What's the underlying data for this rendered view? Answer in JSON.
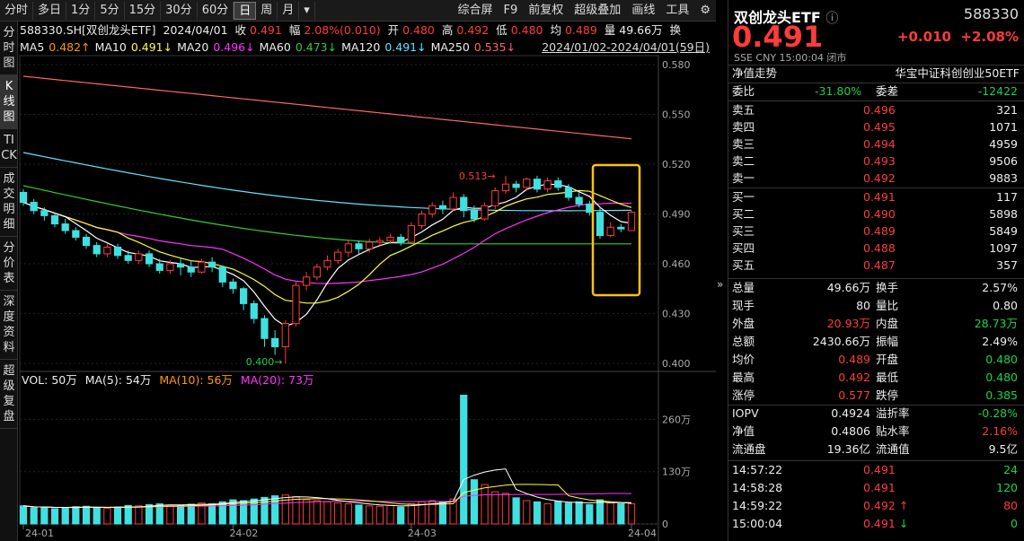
{
  "toolbar": {
    "periods": [
      "分时",
      "多日",
      "1分",
      "5分",
      "15分",
      "30分",
      "60分",
      "日",
      "周",
      "月",
      "▾"
    ],
    "active_period": "日",
    "right_items": [
      "综合屏",
      "F9",
      "前复权",
      "超级叠加",
      "画线",
      "工具",
      "⚙"
    ]
  },
  "left_tabs": [
    "分时图",
    "K线图",
    "TICK",
    "成交明细",
    "分价表",
    "深度资料",
    "超级复盘"
  ],
  "infobar": {
    "code_name": "588330.SH[双创龙头ETF]",
    "date": "2024/04/01",
    "close_label": "收",
    "close": "0.491",
    "amp_label": "幅",
    "amp": "2.08%(0.010)",
    "open_label": "开",
    "open": "0.480",
    "high_label": "高",
    "high": "0.492",
    "low_label": "低",
    "low": "0.480",
    "avg_label": "均",
    "avg": "0.489",
    "vol_label": "量",
    "vol": "49.66万",
    "swap": "换",
    "range": "2024/01/02-2024/04/01(59日)"
  },
  "ma_legend": [
    {
      "label": "MA5",
      "value": "0.482↑",
      "color": "#ff9900"
    },
    {
      "label": "MA10",
      "value": "0.491↓",
      "color": "#ffff33"
    },
    {
      "label": "MA20",
      "value": "0.496↓",
      "color": "#ff33ff"
    },
    {
      "label": "MA60",
      "value": "0.473↓",
      "color": "#33cc33"
    },
    {
      "label": "MA120",
      "value": "0.491↓",
      "color": "#66e0ff"
    },
    {
      "label": "MA250",
      "value": "0.535↓",
      "color": "#ff6666"
    }
  ],
  "volume_legend": {
    "vol": "VOL: 50万",
    "ma5": "MA(5): 54万",
    "ma10": "MA(10): 56万",
    "ma20": "MA(20): 73万"
  },
  "chart_data": {
    "type": "candlestick",
    "price_axis": {
      "ticks": [
        "0.580",
        "0.550",
        "0.520",
        "0.490",
        "0.460",
        "0.430",
        "0.400"
      ],
      "range": [
        0.4,
        0.58
      ]
    },
    "volume_axis": {
      "ticks": [
        "260万",
        "130万",
        "0"
      ],
      "range": [
        0,
        330
      ]
    },
    "x_ticks": [
      "24-01",
      "24-02",
      "24-03",
      "24-04"
    ],
    "annotations": {
      "high": "0.513",
      "low": "0.400"
    },
    "candles": [
      [
        0.503,
        0.497,
        0.505,
        0.495,
        45
      ],
      [
        0.497,
        0.492,
        0.499,
        0.49,
        40
      ],
      [
        0.492,
        0.489,
        0.494,
        0.486,
        42
      ],
      [
        0.489,
        0.484,
        0.491,
        0.482,
        38
      ],
      [
        0.484,
        0.48,
        0.487,
        0.478,
        41
      ],
      [
        0.48,
        0.476,
        0.482,
        0.474,
        43
      ],
      [
        0.476,
        0.471,
        0.478,
        0.469,
        44
      ],
      [
        0.471,
        0.466,
        0.473,
        0.464,
        40
      ],
      [
        0.466,
        0.47,
        0.472,
        0.464,
        39
      ],
      [
        0.47,
        0.465,
        0.472,
        0.463,
        42
      ],
      [
        0.465,
        0.462,
        0.468,
        0.46,
        46
      ],
      [
        0.462,
        0.466,
        0.468,
        0.46,
        45
      ],
      [
        0.466,
        0.46,
        0.468,
        0.458,
        48
      ],
      [
        0.46,
        0.456,
        0.463,
        0.454,
        50
      ],
      [
        0.456,
        0.46,
        0.462,
        0.454,
        47
      ],
      [
        0.46,
        0.458,
        0.463,
        0.453,
        46
      ],
      [
        0.458,
        0.455,
        0.462,
        0.452,
        49
      ],
      [
        0.455,
        0.461,
        0.463,
        0.454,
        52
      ],
      [
        0.461,
        0.458,
        0.464,
        0.455,
        50
      ],
      [
        0.458,
        0.449,
        0.459,
        0.446,
        55
      ],
      [
        0.449,
        0.445,
        0.451,
        0.442,
        60
      ],
      [
        0.445,
        0.436,
        0.446,
        0.432,
        58
      ],
      [
        0.436,
        0.427,
        0.438,
        0.424,
        62
      ],
      [
        0.427,
        0.415,
        0.429,
        0.41,
        66
      ],
      [
        0.415,
        0.41,
        0.42,
        0.405,
        70
      ],
      [
        0.41,
        0.424,
        0.426,
        0.4,
        72
      ],
      [
        0.424,
        0.447,
        0.449,
        0.422,
        68
      ],
      [
        0.447,
        0.452,
        0.455,
        0.444,
        60
      ],
      [
        0.452,
        0.458,
        0.46,
        0.45,
        58
      ],
      [
        0.458,
        0.462,
        0.465,
        0.456,
        55
      ],
      [
        0.462,
        0.467,
        0.469,
        0.46,
        52
      ],
      [
        0.467,
        0.472,
        0.474,
        0.464,
        50
      ],
      [
        0.472,
        0.469,
        0.474,
        0.466,
        47
      ],
      [
        0.469,
        0.473,
        0.475,
        0.467,
        45
      ],
      [
        0.473,
        0.474,
        0.476,
        0.471,
        44
      ],
      [
        0.474,
        0.476,
        0.478,
        0.472,
        46
      ],
      [
        0.476,
        0.473,
        0.478,
        0.471,
        42
      ],
      [
        0.473,
        0.483,
        0.485,
        0.472,
        50
      ],
      [
        0.483,
        0.49,
        0.492,
        0.481,
        55
      ],
      [
        0.49,
        0.495,
        0.497,
        0.488,
        58
      ],
      [
        0.495,
        0.493,
        0.498,
        0.49,
        56
      ],
      [
        0.493,
        0.5,
        0.503,
        0.492,
        62
      ],
      [
        0.5,
        0.492,
        0.502,
        0.488,
        320
      ],
      [
        0.492,
        0.487,
        0.495,
        0.485,
        110
      ],
      [
        0.487,
        0.495,
        0.497,
        0.486,
        98
      ],
      [
        0.495,
        0.504,
        0.506,
        0.493,
        80
      ],
      [
        0.504,
        0.508,
        0.513,
        0.502,
        76
      ],
      [
        0.508,
        0.506,
        0.51,
        0.503,
        65
      ],
      [
        0.506,
        0.511,
        0.512,
        0.504,
        58
      ],
      [
        0.511,
        0.505,
        0.513,
        0.503,
        55
      ],
      [
        0.505,
        0.51,
        0.512,
        0.503,
        50
      ],
      [
        0.51,
        0.506,
        0.512,
        0.504,
        56
      ],
      [
        0.506,
        0.5,
        0.508,
        0.498,
        52
      ],
      [
        0.5,
        0.496,
        0.503,
        0.494,
        55
      ],
      [
        0.496,
        0.491,
        0.498,
        0.489,
        48
      ],
      [
        0.491,
        0.477,
        0.494,
        0.475,
        60
      ],
      [
        0.477,
        0.482,
        0.485,
        0.476,
        52
      ],
      [
        0.482,
        0.481,
        0.484,
        0.479,
        50
      ],
      [
        0.48,
        0.491,
        0.492,
        0.48,
        50
      ]
    ]
  },
  "quote": {
    "name": "双创龙头ETF",
    "code": "588330",
    "price": "0.491",
    "change": "+0.010",
    "change_pct": "+2.08%",
    "exchange": "SSE  CNY  15:00:04  闭市",
    "trend_label": "净值走势",
    "index_name": "华宝中证科创创业50ETF",
    "weibi_label": "委比",
    "weibi": "-31.80%",
    "weicha_label": "委差",
    "weicha": "-12422",
    "asks": [
      {
        "label": "卖五",
        "price": "0.496",
        "vol": "321"
      },
      {
        "label": "卖四",
        "price": "0.495",
        "vol": "1071"
      },
      {
        "label": "卖三",
        "price": "0.494",
        "vol": "4959"
      },
      {
        "label": "卖二",
        "price": "0.493",
        "vol": "9506"
      },
      {
        "label": "卖一",
        "price": "0.492",
        "vol": "9883"
      }
    ],
    "bids": [
      {
        "label": "买一",
        "price": "0.491",
        "vol": "117"
      },
      {
        "label": "买二",
        "price": "0.490",
        "vol": "5898"
      },
      {
        "label": "买三",
        "price": "0.489",
        "vol": "5849"
      },
      {
        "label": "买四",
        "price": "0.488",
        "vol": "1097"
      },
      {
        "label": "买五",
        "price": "0.487",
        "vol": "357"
      }
    ],
    "stats": [
      [
        {
          "l": "总量",
          "v": "49.66万",
          "c": "white"
        },
        {
          "l": "换手",
          "v": "2.57%",
          "c": "white"
        }
      ],
      [
        {
          "l": "现手",
          "v": "80",
          "c": "white"
        },
        {
          "l": "量比",
          "v": "0.80",
          "c": "white"
        }
      ],
      [
        {
          "l": "外盘",
          "v": "20.93万",
          "c": "red"
        },
        {
          "l": "内盘",
          "v": "28.73万",
          "c": "green"
        }
      ],
      [
        {
          "l": "总额",
          "v": "2430.66万",
          "c": "white"
        },
        {
          "l": "振幅",
          "v": "2.49%",
          "c": "white"
        }
      ],
      [
        {
          "l": "均价",
          "v": "0.489",
          "c": "red"
        },
        {
          "l": "开盘",
          "v": "0.480",
          "c": "green"
        }
      ],
      [
        {
          "l": "最高",
          "v": "0.492",
          "c": "red"
        },
        {
          "l": "最低",
          "v": "0.480",
          "c": "green"
        }
      ],
      [
        {
          "l": "涨停",
          "v": "0.577",
          "c": "red"
        },
        {
          "l": "跌停",
          "v": "0.385",
          "c": "green"
        }
      ]
    ],
    "etf_stats": [
      [
        {
          "l": "IOPV",
          "v": "0.4924",
          "c": "white"
        },
        {
          "l": "溢折率",
          "v": "-0.28%",
          "c": "green"
        }
      ],
      [
        {
          "l": "净值",
          "v": "0.4806",
          "c": "white"
        },
        {
          "l": "贴水率",
          "v": "2.16%",
          "c": "red"
        }
      ],
      [
        {
          "l": "流通盘",
          "v": "19.36亿",
          "c": "white"
        },
        {
          "l": "流通值",
          "v": "9.5亿",
          "c": "white"
        }
      ]
    ],
    "ticks": [
      {
        "time": "14:57:22",
        "price": "0.491",
        "arrow": "",
        "vol": "24",
        "vc": "green"
      },
      {
        "time": "14:58:28",
        "price": "0.491",
        "arrow": "",
        "vol": "120",
        "vc": "green"
      },
      {
        "time": "14:59:22",
        "price": "0.492",
        "arrow": "↑",
        "vol": "80",
        "vc": "red"
      },
      {
        "time": "15:00:04",
        "price": "0.491",
        "arrow": "↓",
        "vol": "0",
        "vc": "green"
      }
    ]
  }
}
